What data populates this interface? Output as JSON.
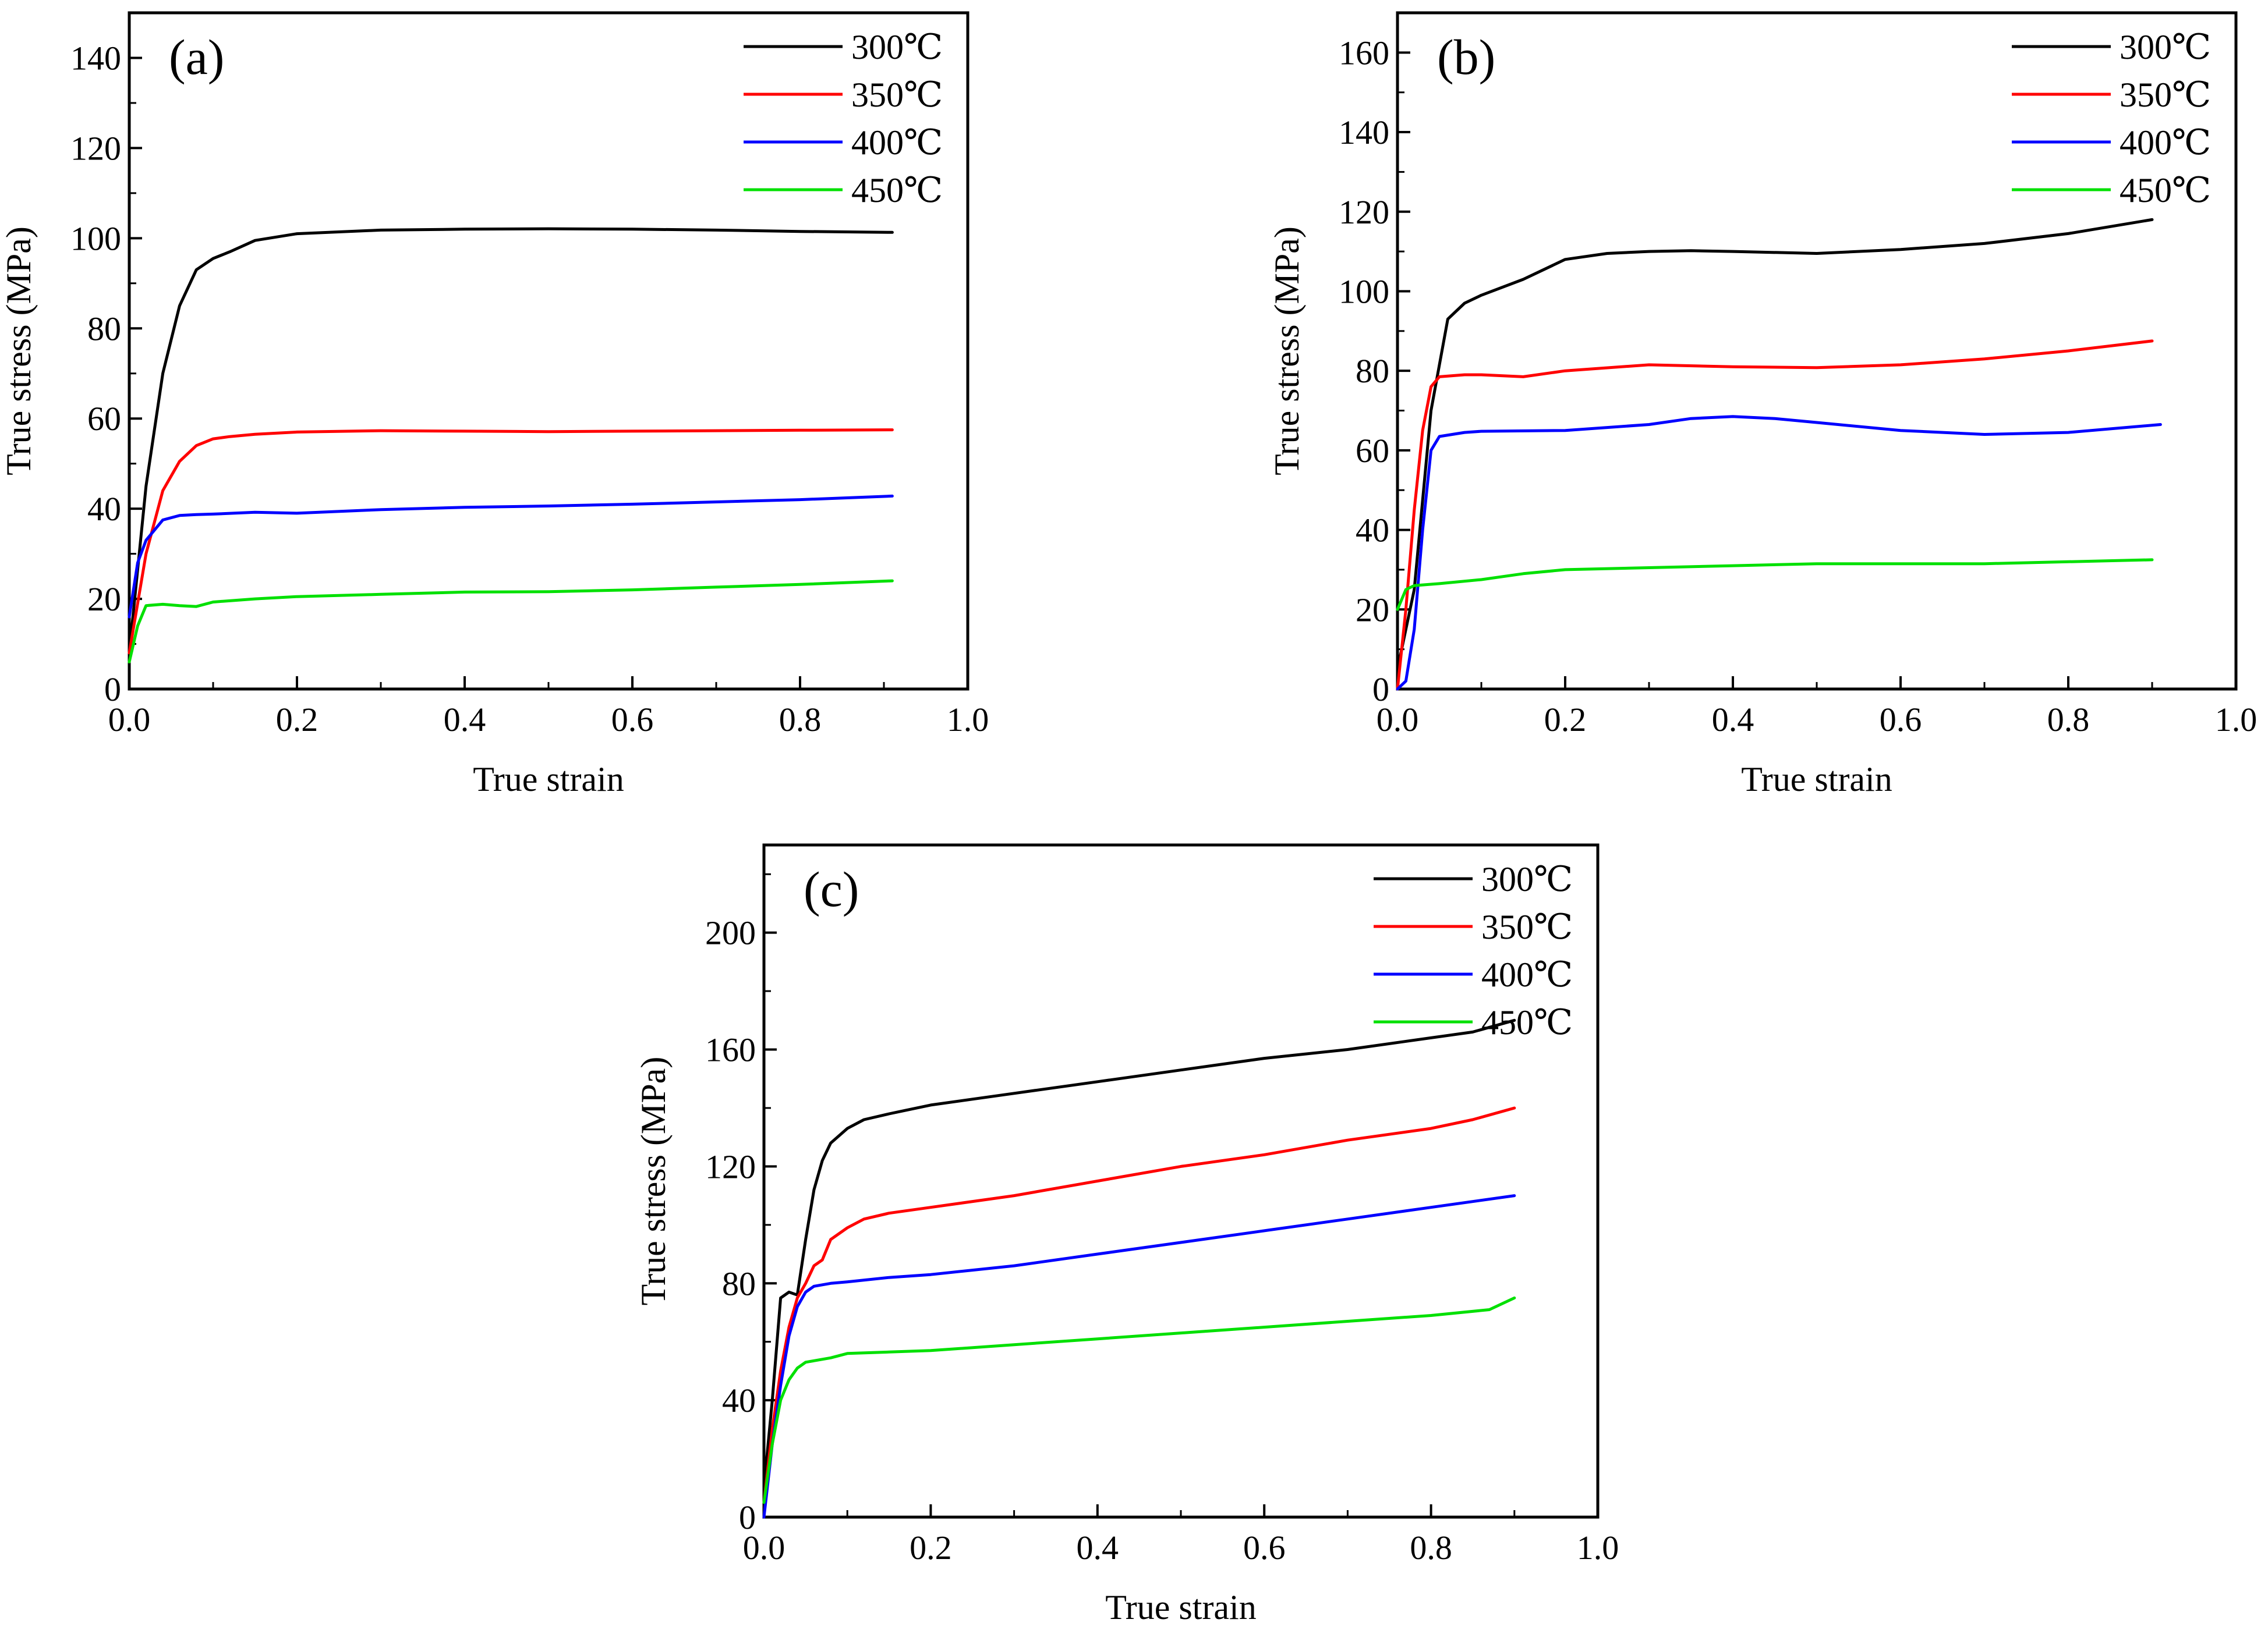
{
  "figure": {
    "legend_labels": [
      "300℃",
      "350℃",
      "400℃",
      "450℃"
    ],
    "colors": {
      "300℃": "#000000",
      "350℃": "#ff0000",
      "400℃": "#0000ff",
      "450℃": "#00e000"
    }
  },
  "chart_data": [
    {
      "id": "a",
      "type": "line",
      "panel_label": "(a)",
      "xlabel": "True strain",
      "ylabel": "True stress (MPa)",
      "xlim": [
        0.0,
        1.0
      ],
      "ylim": [
        0,
        150
      ],
      "xticks": [
        0.0,
        0.2,
        0.4,
        0.6,
        0.8,
        1.0
      ],
      "xtick_labels": [
        "0.0",
        "0.2",
        "0.4",
        "0.6",
        "0.8",
        "1.0"
      ],
      "yticks": [
        0,
        20,
        40,
        60,
        80,
        100,
        120,
        140
      ],
      "ytick_labels": [
        "0",
        "20",
        "40",
        "60",
        "80",
        "100",
        "120",
        "140"
      ],
      "legend_position": "top-right",
      "series": [
        {
          "name": "300℃",
          "x": [
            0,
            0.02,
            0.04,
            0.06,
            0.08,
            0.1,
            0.12,
            0.15,
            0.2,
            0.3,
            0.4,
            0.5,
            0.6,
            0.7,
            0.8,
            0.91
          ],
          "y": [
            8,
            45,
            70,
            85,
            93,
            95.5,
            97,
            99.5,
            101,
            101.8,
            102,
            102.1,
            102,
            101.8,
            101.5,
            101.3
          ]
        },
        {
          "name": "350℃",
          "x": [
            0,
            0.02,
            0.04,
            0.06,
            0.08,
            0.1,
            0.12,
            0.15,
            0.2,
            0.3,
            0.4,
            0.5,
            0.6,
            0.7,
            0.8,
            0.91
          ],
          "y": [
            8,
            30,
            44,
            50.5,
            54,
            55.5,
            56,
            56.5,
            57,
            57.3,
            57.2,
            57.1,
            57.2,
            57.3,
            57.4,
            57.5
          ]
        },
        {
          "name": "400℃",
          "x": [
            0,
            0.01,
            0.02,
            0.04,
            0.06,
            0.08,
            0.1,
            0.15,
            0.2,
            0.3,
            0.4,
            0.5,
            0.6,
            0.7,
            0.8,
            0.91
          ],
          "y": [
            16,
            28,
            33,
            37.5,
            38.5,
            38.7,
            38.8,
            39.2,
            39,
            39.8,
            40.3,
            40.6,
            41,
            41.5,
            42,
            42.8
          ]
        },
        {
          "name": "450℃",
          "x": [
            0,
            0.01,
            0.02,
            0.04,
            0.06,
            0.08,
            0.1,
            0.15,
            0.2,
            0.3,
            0.4,
            0.5,
            0.6,
            0.7,
            0.8,
            0.91
          ],
          "y": [
            6,
            14,
            18.5,
            18.8,
            18.5,
            18.3,
            19.3,
            20,
            20.5,
            21,
            21.5,
            21.6,
            22,
            22.6,
            23.2,
            24
          ]
        }
      ]
    },
    {
      "id": "b",
      "type": "line",
      "panel_label": "(b)",
      "xlabel": "True strain",
      "ylabel": "True stress (MPa)",
      "xlim": [
        0.0,
        1.0
      ],
      "ylim": [
        0,
        170
      ],
      "xticks": [
        0.0,
        0.2,
        0.4,
        0.6,
        0.8,
        1.0
      ],
      "xtick_labels": [
        "0.0",
        "0.2",
        "0.4",
        "0.6",
        "0.8",
        "1.0"
      ],
      "yticks": [
        0,
        20,
        40,
        60,
        80,
        100,
        120,
        140,
        160
      ],
      "ytick_labels": [
        "0",
        "20",
        "40",
        "60",
        "80",
        "100",
        "120",
        "140",
        "160"
      ],
      "legend_position": "top-right",
      "series": [
        {
          "name": "300℃",
          "x": [
            0,
            0.02,
            0.04,
            0.06,
            0.08,
            0.1,
            0.15,
            0.2,
            0.25,
            0.3,
            0.35,
            0.4,
            0.5,
            0.6,
            0.7,
            0.8,
            0.9
          ],
          "y": [
            5,
            25,
            70,
            93,
            97,
            99,
            103,
            108,
            109.5,
            110,
            110.2,
            110,
            109.5,
            110.5,
            112,
            114.5,
            118
          ]
        },
        {
          "name": "350℃",
          "x": [
            0,
            0.01,
            0.02,
            0.03,
            0.04,
            0.05,
            0.08,
            0.1,
            0.15,
            0.2,
            0.3,
            0.4,
            0.5,
            0.6,
            0.7,
            0.8,
            0.9
          ],
          "y": [
            0,
            20,
            45,
            65,
            76,
            78.5,
            79,
            79,
            78.5,
            80,
            81.5,
            81,
            80.8,
            81.5,
            83,
            85,
            87.5
          ]
        },
        {
          "name": "400℃",
          "x": [
            0,
            0.01,
            0.02,
            0.03,
            0.04,
            0.05,
            0.08,
            0.1,
            0.2,
            0.3,
            0.35,
            0.4,
            0.45,
            0.5,
            0.6,
            0.7,
            0.8,
            0.91
          ],
          "y": [
            0,
            2,
            15,
            40,
            60,
            63.5,
            64.5,
            64.8,
            65,
            66.5,
            68,
            68.5,
            68,
            67,
            65,
            64,
            64.5,
            66.5
          ]
        },
        {
          "name": "450℃",
          "x": [
            0,
            0.01,
            0.02,
            0.05,
            0.1,
            0.15,
            0.2,
            0.3,
            0.4,
            0.5,
            0.6,
            0.7,
            0.8,
            0.9
          ],
          "y": [
            20,
            25,
            26,
            26.5,
            27.5,
            29,
            30,
            30.5,
            31,
            31.5,
            31.5,
            31.5,
            32,
            32.5
          ]
        }
      ]
    },
    {
      "id": "c",
      "type": "line",
      "panel_label": "(c)",
      "xlabel": "True strain",
      "ylabel": "True stress (MPa)",
      "xlim": [
        0.0,
        1.0
      ],
      "ylim": [
        0,
        230
      ],
      "xticks": [
        0.0,
        0.2,
        0.4,
        0.6,
        0.8,
        1.0
      ],
      "xtick_labels": [
        "0.0",
        "0.2",
        "0.4",
        "0.6",
        "0.8",
        "1.0"
      ],
      "yticks": [
        0,
        40,
        80,
        120,
        160,
        200
      ],
      "ytick_labels": [
        "0",
        "40",
        "80",
        "120",
        "160",
        "200"
      ],
      "legend_position": "top-right",
      "series": [
        {
          "name": "300℃",
          "x": [
            0,
            0.01,
            0.02,
            0.03,
            0.04,
            0.05,
            0.06,
            0.07,
            0.08,
            0.1,
            0.12,
            0.15,
            0.2,
            0.3,
            0.4,
            0.5,
            0.6,
            0.7,
            0.8,
            0.85,
            0.9
          ],
          "y": [
            10,
            40,
            75,
            77,
            76,
            95,
            112,
            122,
            128,
            133,
            136,
            138,
            141,
            145,
            149,
            153,
            157,
            160,
            164,
            166,
            170
          ]
        },
        {
          "name": "350℃",
          "x": [
            0,
            0.01,
            0.02,
            0.03,
            0.04,
            0.05,
            0.06,
            0.07,
            0.08,
            0.1,
            0.12,
            0.15,
            0.2,
            0.3,
            0.4,
            0.5,
            0.6,
            0.7,
            0.8,
            0.85,
            0.9
          ],
          "y": [
            5,
            30,
            50,
            65,
            75,
            80,
            86,
            88,
            95,
            99,
            102,
            104,
            106,
            110,
            115,
            120,
            124,
            129,
            133,
            136,
            140
          ]
        },
        {
          "name": "400℃",
          "x": [
            0,
            0.01,
            0.02,
            0.03,
            0.04,
            0.05,
            0.06,
            0.08,
            0.1,
            0.15,
            0.2,
            0.3,
            0.4,
            0.5,
            0.6,
            0.7,
            0.8,
            0.9
          ],
          "y": [
            0,
            25,
            45,
            62,
            72,
            77,
            79,
            80,
            80.5,
            82,
            83,
            86,
            90,
            94,
            98,
            102,
            106,
            110
          ]
        },
        {
          "name": "450℃",
          "x": [
            0,
            0.01,
            0.02,
            0.03,
            0.04,
            0.05,
            0.06,
            0.08,
            0.1,
            0.15,
            0.2,
            0.3,
            0.4,
            0.5,
            0.6,
            0.7,
            0.8,
            0.87,
            0.9
          ],
          "y": [
            5,
            25,
            40,
            47,
            51,
            53,
            53.5,
            54.5,
            56,
            56.5,
            57,
            59,
            61,
            63,
            65,
            67,
            69,
            71,
            75
          ]
        }
      ]
    }
  ]
}
